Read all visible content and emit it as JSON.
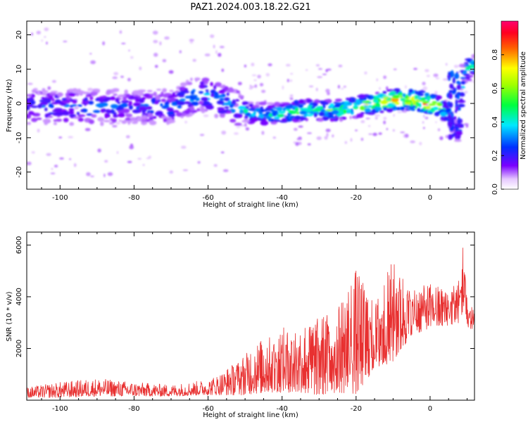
{
  "title": "PAZ1.2024.003.18.22.G21",
  "chart_data": [
    {
      "type": "heatmap",
      "xlabel": "Height of straight line (km)",
      "ylabel": "Frequency (Hz)",
      "xlim": [
        -109,
        12
      ],
      "ylim": [
        -25,
        24
      ],
      "xticks": [
        "-100",
        "-80",
        "-60",
        "-40",
        "-20",
        "0"
      ],
      "xtick_values": [
        -100,
        -80,
        -60,
        -40,
        -20,
        0
      ],
      "yticks": [
        "-20",
        "-10",
        "0",
        "10",
        "20"
      ],
      "ytick_values": [
        -20,
        -10,
        0,
        10,
        20
      ],
      "colorbar": {
        "label": "Normalized spectral amplitude",
        "range": [
          0,
          1
        ],
        "ticks": [
          "0.0",
          "0.2",
          "0.4",
          "0.6",
          "0.8"
        ],
        "tick_values": [
          0.0,
          0.2,
          0.4,
          0.6,
          0.8
        ],
        "colormap": "rainbow (white-violet-blue-cyan-green-yellow-red-pink)"
      },
      "ridge": {
        "x": [
          -108,
          -100,
          -90,
          -80,
          -70,
          -62,
          -55,
          -48,
          -40,
          -35,
          -30,
          -25,
          -20,
          -15,
          -10,
          -5,
          0,
          3,
          5,
          6,
          7,
          8,
          9,
          10,
          12
        ],
        "freq": [
          -1,
          -1,
          -1,
          -1,
          -1,
          3,
          0,
          -3,
          -3,
          -2,
          -2,
          -2,
          -1,
          0,
          1,
          1,
          0,
          -1,
          -3,
          -6,
          -8,
          -8,
          8,
          10,
          11
        ],
        "amplitude": [
          0.25,
          0.3,
          0.3,
          0.25,
          0.3,
          0.35,
          0.35,
          0.4,
          0.5,
          0.6,
          0.5,
          0.55,
          0.6,
          0.75,
          0.85,
          0.8,
          0.9,
          0.6,
          0.4,
          0.3,
          0.3,
          0.3,
          0.35,
          0.5,
          0.55
        ]
      }
    },
    {
      "type": "line",
      "xlabel": "Height of straight line (km)",
      "ylabel": "SNR (10 * v/v)",
      "xlim": [
        -109,
        12
      ],
      "ylim": [
        0,
        6500
      ],
      "xticks": [
        "-100",
        "-80",
        "-60",
        "-40",
        "-20",
        "0"
      ],
      "xtick_values": [
        -100,
        -80,
        -60,
        -40,
        -20,
        0
      ],
      "yticks": [
        "2000",
        "4000",
        "6000"
      ],
      "ytick_values": [
        2000,
        4000,
        6000
      ],
      "line_color": "#e83030",
      "envelope": {
        "x": [
          -109,
          -100,
          -90,
          -80,
          -70,
          -60,
          -55,
          -50,
          -45,
          -40,
          -35,
          -30,
          -25,
          -20,
          -15,
          -10,
          -5,
          0,
          5,
          8,
          9,
          10,
          12
        ],
        "min": [
          100,
          100,
          150,
          150,
          150,
          200,
          200,
          200,
          300,
          300,
          300,
          200,
          300,
          250,
          1200,
          1500,
          2500,
          2800,
          2900,
          3000,
          3500,
          2800,
          2700
        ],
        "max": [
          500,
          700,
          850,
          700,
          600,
          800,
          1200,
          1800,
          2400,
          2800,
          2900,
          3200,
          3600,
          5100,
          3700,
          5500,
          4300,
          4500,
          4300,
          4700,
          6400,
          3900,
          3700
        ]
      }
    }
  ]
}
